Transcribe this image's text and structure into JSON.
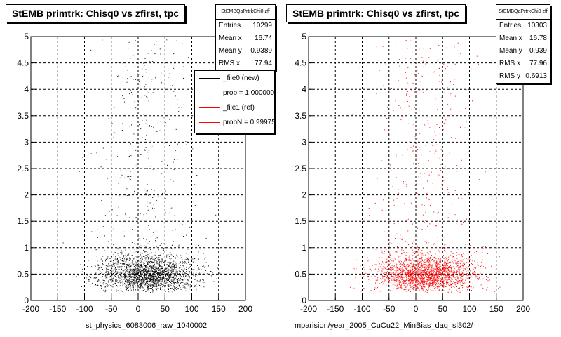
{
  "footer_text": "",
  "chart_data": [
    {
      "type": "scatter",
      "title": "StEMB primtrk: Chisq0 vs zfirst, tpc",
      "xlabel": "st_physics_6083006_raw_1040002",
      "ylabel": "",
      "xlim": [
        -200,
        200
      ],
      "ylim": [
        0,
        5
      ],
      "xticks": [
        -200,
        -150,
        -100,
        -50,
        0,
        50,
        100,
        150,
        200
      ],
      "yticks": [
        0,
        0.5,
        1,
        1.5,
        2,
        2.5,
        3,
        3.5,
        4,
        4.5,
        5
      ],
      "grid": true,
      "marker_color": "#000000",
      "stats": {
        "name": "StEMBQaPrtrkChi0 zff",
        "rows": [
          {
            "label": "Entries",
            "value": "10299"
          },
          {
            "label": "Mean x",
            "value": "16.74"
          },
          {
            "label": "Mean y",
            "value": "0.9389"
          },
          {
            "label": "RMS x",
            "value": "77.94"
          }
        ]
      },
      "legend": [
        {
          "label": "_file0 (new)",
          "color": "#000000"
        },
        {
          "label": "prob = 1.000000",
          "color": "#000000"
        },
        {
          "label": "_file1 (ref)",
          "color": "#ff0000"
        },
        {
          "label": "probN = 0.99975",
          "color": "#ff0000"
        }
      ],
      "series": [
        {
          "x_center": 16.74,
          "x_rms": 77.94,
          "y_mean": 0.9389,
          "entries": 10299
        }
      ]
    },
    {
      "type": "scatter",
      "title": "StEMB primtrk: Chisq0 vs zfirst, tpc",
      "xlabel": "mparision/year_2005_CuCu22_MinBias_daq_sl302/",
      "ylabel": "",
      "xlim": [
        -200,
        200
      ],
      "ylim": [
        0,
        5
      ],
      "xticks": [
        -200,
        -150,
        -100,
        -50,
        0,
        50,
        100,
        150,
        200
      ],
      "yticks": [
        0,
        0.5,
        1,
        1.5,
        2,
        2.5,
        3,
        3.5,
        4,
        4.5,
        5
      ],
      "grid": true,
      "marker_color": "#ff0000",
      "stats": {
        "name": "StEMBQaPrtrkChi0 zff",
        "rows": [
          {
            "label": "Entries",
            "value": "10303"
          },
          {
            "label": "Mean x",
            "value": "16.78"
          },
          {
            "label": "Mean y",
            "value": "0.939"
          },
          {
            "label": "RMS x",
            "value": "77.96"
          },
          {
            "label": "RMS y",
            "value": "0.6913"
          }
        ]
      },
      "series": [
        {
          "x_center": 16.78,
          "x_rms": 77.96,
          "y_mean": 0.939,
          "entries": 10303
        }
      ]
    }
  ]
}
